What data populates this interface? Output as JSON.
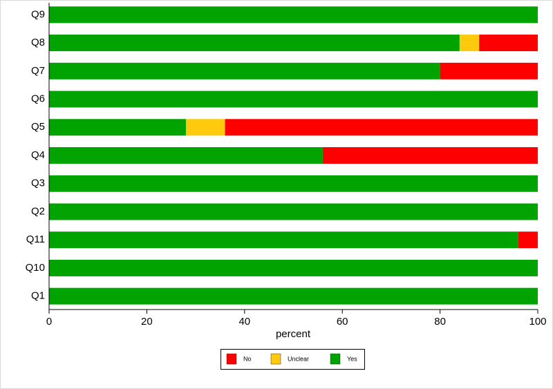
{
  "chart_data": {
    "type": "stacked-barh",
    "categories": [
      "Q9",
      "Q8",
      "Q7",
      "Q6",
      "Q5",
      "Q4",
      "Q3",
      "Q2",
      "Q11",
      "Q10",
      "Q1"
    ],
    "series": [
      {
        "name": "No",
        "color": "#ff0000",
        "values": [
          0,
          12,
          20,
          0,
          64,
          44,
          0,
          0,
          4,
          0,
          0
        ]
      },
      {
        "name": "Unclear",
        "color": "#ffc90e",
        "values": [
          0,
          4,
          0,
          0,
          8,
          0,
          0,
          0,
          0,
          0,
          0
        ]
      },
      {
        "name": "Yes",
        "color": "#00a300",
        "values": [
          100,
          84,
          80,
          100,
          28,
          56,
          100,
          100,
          96,
          100,
          100
        ]
      }
    ],
    "xlabel": "percent",
    "xlim": [
      0,
      100
    ],
    "xticks": [
      0,
      20,
      40,
      60,
      80,
      100
    ],
    "legend": "bottom"
  }
}
